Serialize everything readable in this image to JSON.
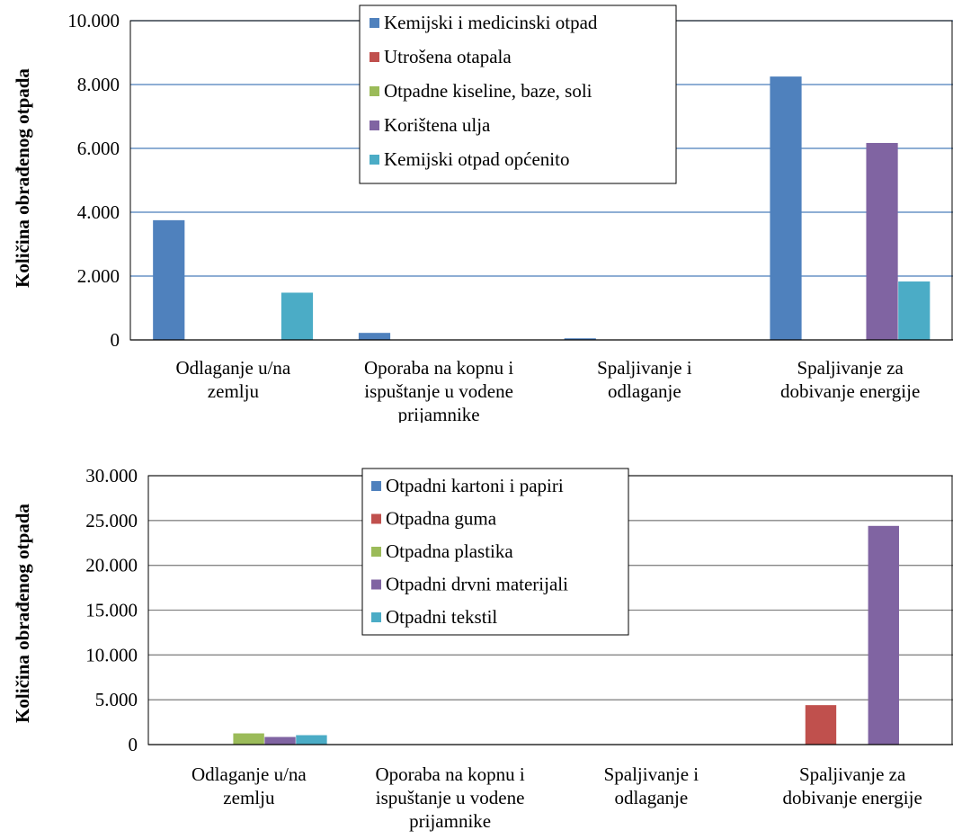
{
  "chart_data": [
    {
      "type": "bar",
      "ylabel": "Količina obrađenog otpada",
      "xlabel": "",
      "categories": [
        [
          "Odlaganje u/na",
          "zemlju"
        ],
        [
          "Oporaba na kopnu i",
          "ispuštanje u vodene",
          "prijamnike"
        ],
        [
          "Spaljivanje i",
          "odlaganje"
        ],
        [
          "Spaljivanje za",
          "dobivanje energije"
        ]
      ],
      "ylim": [
        0,
        10000
      ],
      "yticks": [
        "0",
        "2.000",
        "4.000",
        "6.000",
        "8.000",
        "10.000"
      ],
      "yticks_values": [
        0,
        2000,
        4000,
        6000,
        8000,
        10000
      ],
      "grid": true,
      "legend_position": "top-center",
      "series": [
        {
          "name": "Kemijski i medicinski otpad",
          "color": "#4f81bd",
          "values": [
            3750,
            220,
            50,
            8250
          ]
        },
        {
          "name": "Utrošena otapala",
          "color": "#c0504d",
          "values": [
            0,
            0,
            0,
            0
          ]
        },
        {
          "name": "Otpadne kiseline, baze, soli",
          "color": "#9bbb59",
          "values": [
            0,
            0,
            0,
            0
          ]
        },
        {
          "name": "Korištena ulja",
          "color": "#8064a2",
          "values": [
            0,
            0,
            0,
            6170
          ]
        },
        {
          "name": "Kemijski otpad općenito",
          "color": "#4bacc6",
          "values": [
            1480,
            0,
            0,
            1830
          ]
        }
      ]
    },
    {
      "type": "bar",
      "ylabel": "Količina obrađenog otpada",
      "xlabel": "",
      "categories": [
        [
          "Odlaganje u/na",
          "zemlju"
        ],
        [
          "Oporaba na kopnu i",
          "ispuštanje u vodene",
          "prijamnike"
        ],
        [
          "Spaljivanje i",
          "odlaganje"
        ],
        [
          "Spaljivanje za",
          "dobivanje energije"
        ]
      ],
      "ylim": [
        0,
        30000
      ],
      "yticks": [
        "0",
        "5.000",
        "10.000",
        "15.000",
        "20.000",
        "25.000",
        "30.000"
      ],
      "yticks_values": [
        0,
        5000,
        10000,
        15000,
        20000,
        25000,
        30000
      ],
      "grid": true,
      "legend_position": "top-center",
      "series": [
        {
          "name": "Otpadni kartoni i papiri",
          "color": "#4f81bd",
          "values": [
            0,
            0,
            0,
            0
          ]
        },
        {
          "name": "Otpadna guma",
          "color": "#c0504d",
          "values": [
            0,
            0,
            0,
            4400
          ]
        },
        {
          "name": "Otpadna plastika",
          "color": "#9bbb59",
          "values": [
            1250,
            0,
            0,
            0
          ]
        },
        {
          "name": "Otpadni drvni materijali",
          "color": "#8064a2",
          "values": [
            850,
            0,
            0,
            24400
          ]
        },
        {
          "name": "Otpadni tekstil",
          "color": "#4bacc6",
          "values": [
            1050,
            0,
            0,
            0
          ]
        }
      ]
    }
  ]
}
